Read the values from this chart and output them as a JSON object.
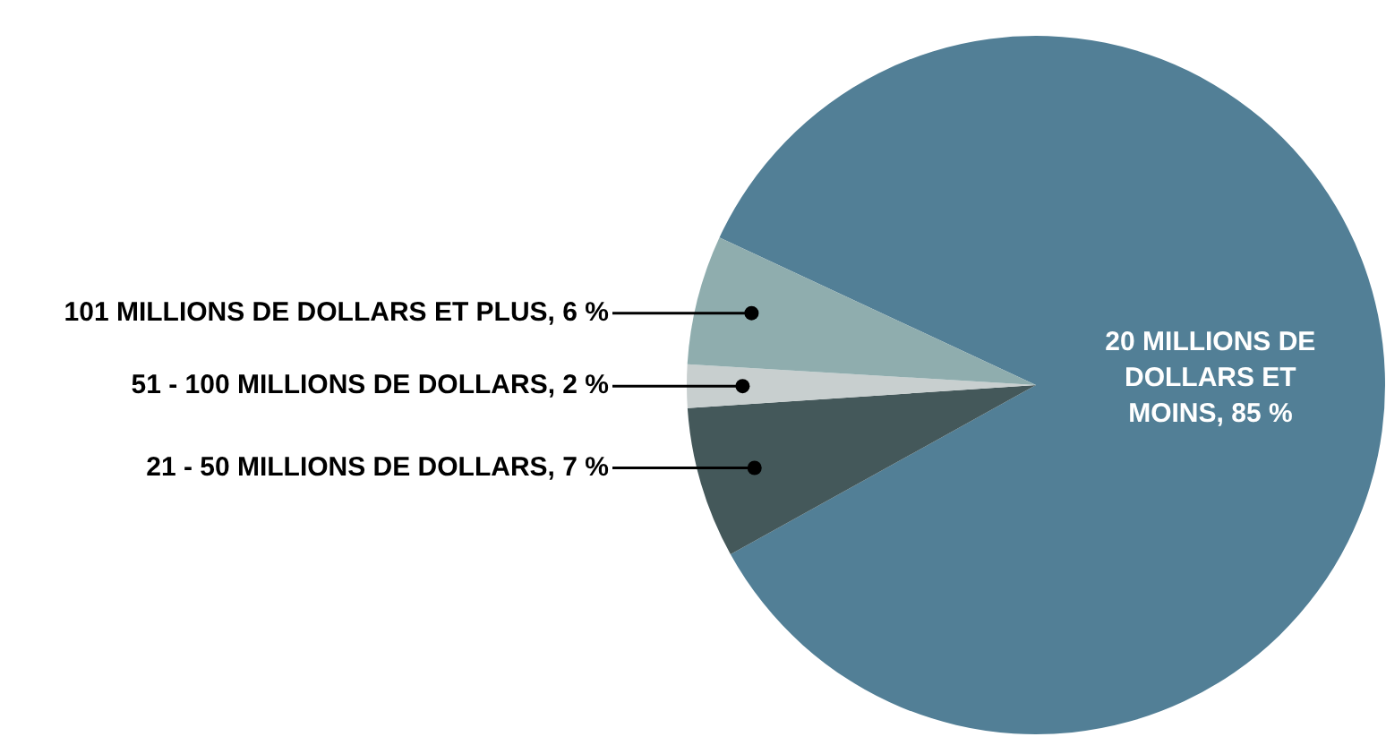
{
  "chart_data": {
    "type": "pie",
    "categories": [
      "20 MILLIONS DE DOLLARS ET MOINS",
      "21 - 50 MILLIONS DE DOLLARS",
      "51 - 100 MILLIONS DE DOLLARS",
      "101 MILLIONS DE DOLLARS ET PLUS"
    ],
    "values": [
      85,
      7,
      2,
      6
    ],
    "value_labels": [
      "85 %",
      "7 %",
      "2 %",
      "6 %"
    ],
    "colors": [
      "#527f96",
      "#44585a",
      "#c8cfcf",
      "#8fadae"
    ],
    "legend": false
  }
}
